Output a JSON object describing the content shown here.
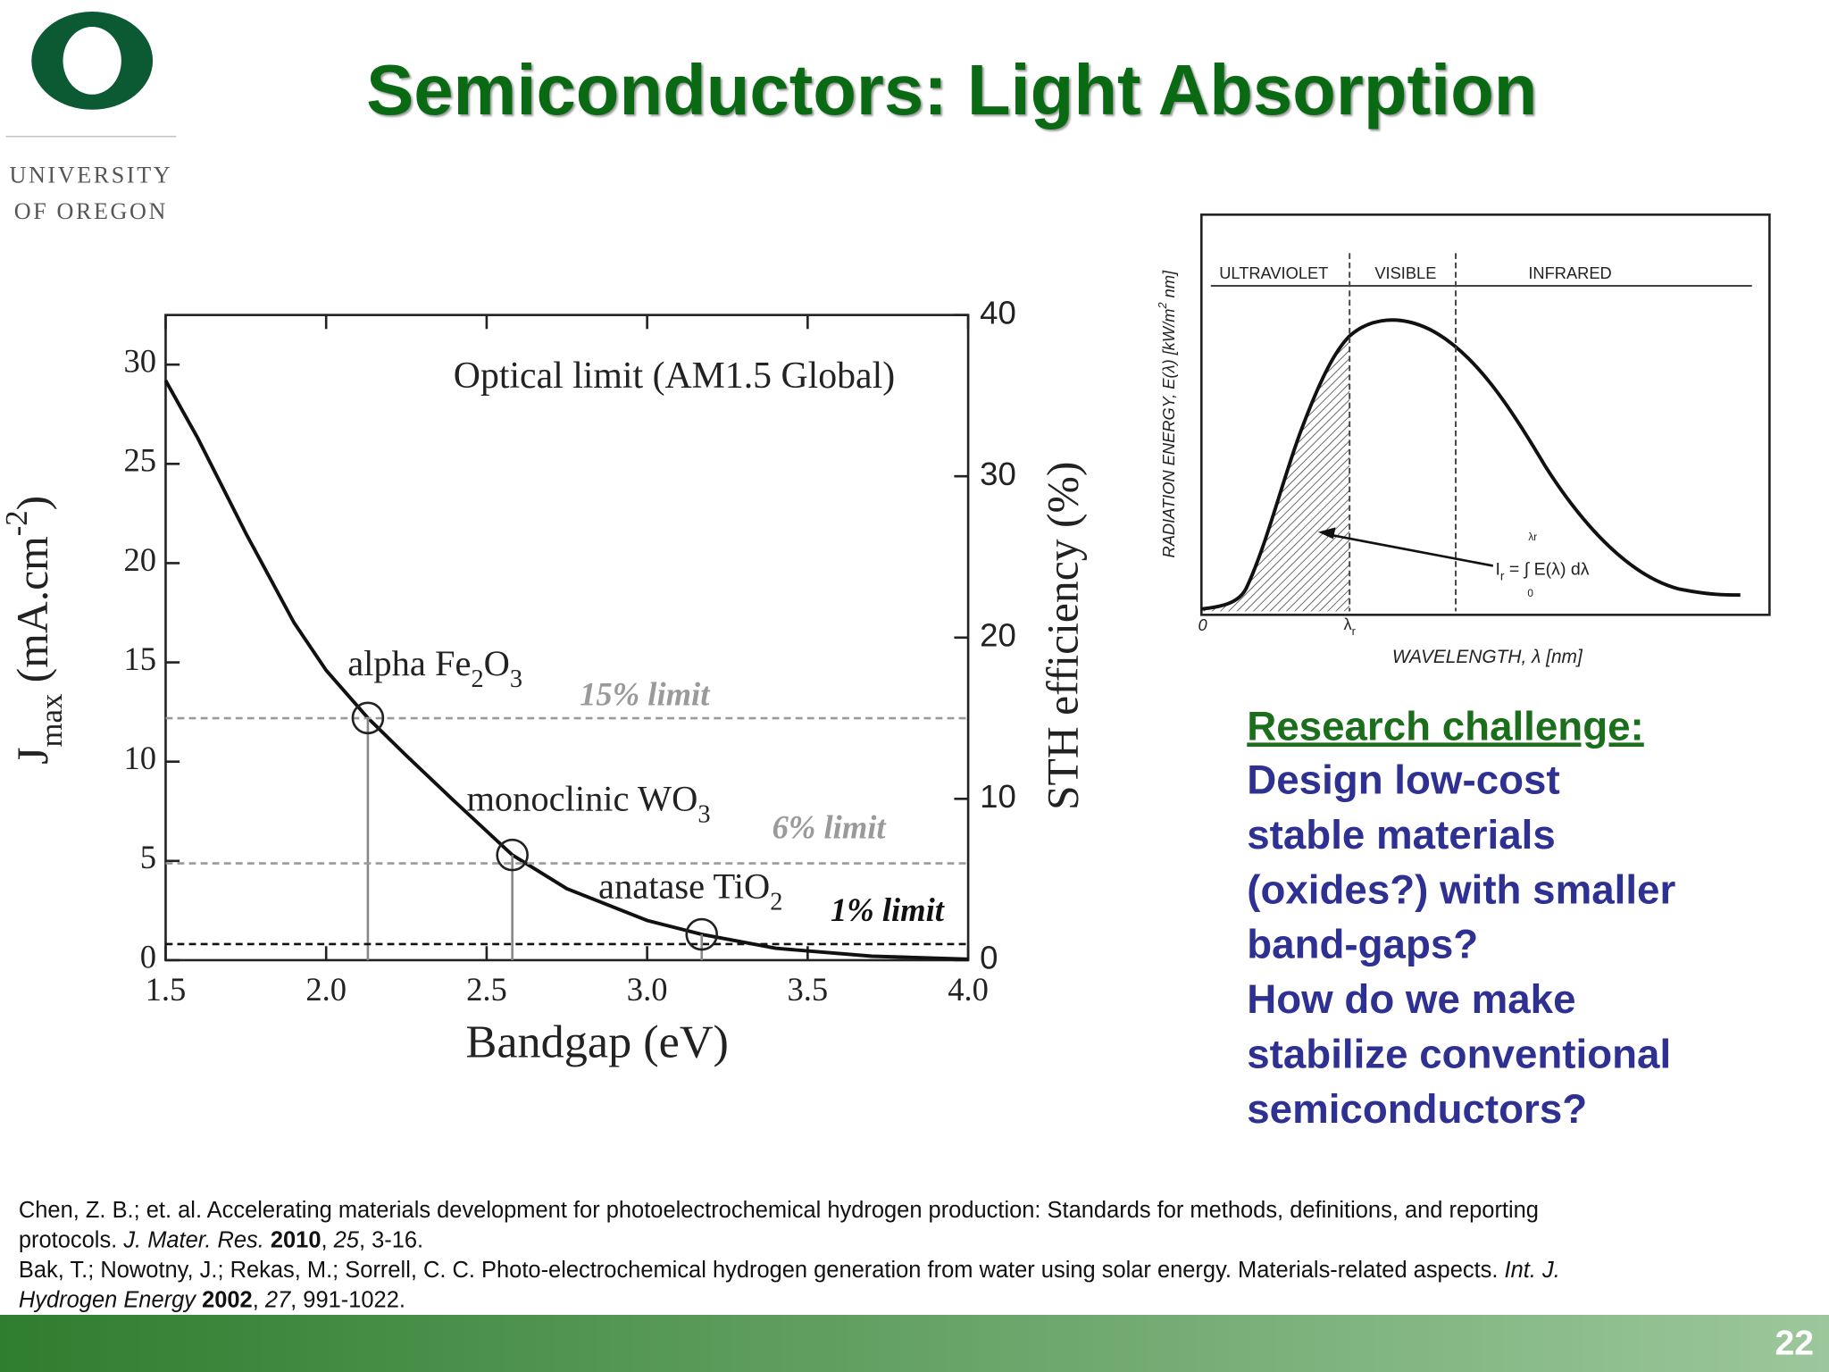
{
  "title": "Semiconductors: Light Absorption",
  "logo": {
    "line1": "UNIVERSITY",
    "line2": "OF OREGON"
  },
  "chart_data": {
    "type": "line",
    "title": "Optical limit (AM1.5 Global)",
    "x_label": "Bandgap (eV)",
    "y_label": [
      {
        "text": "J"
      },
      {
        "text": "max",
        "style": "sub"
      },
      {
        "text": " (mA.cm"
      },
      {
        "text": "-2",
        "style": "sup"
      },
      {
        "text": ")"
      }
    ],
    "y2_label": "STH efficiency (%)",
    "x": [
      1.5,
      1.6,
      1.75,
      1.9,
      2.0,
      2.13,
      2.25,
      2.4,
      2.58,
      2.75,
      3.0,
      3.17,
      3.4,
      3.7,
      4.0
    ],
    "series": [
      {
        "color": "#111111",
        "values": [
          29.2,
          26.3,
          21.5,
          17.0,
          14.6,
          12.2,
          10.3,
          8.0,
          5.3,
          3.6,
          2.0,
          1.3,
          0.6,
          0.2,
          0.05
        ]
      }
    ],
    "xlim": [
      1.5,
      4.0
    ],
    "xticks": [
      1.5,
      {
        "value": 2,
        "label": "2.0"
      },
      2.5,
      {
        "value": 3,
        "label": "3.0"
      },
      3.5,
      {
        "value": 4,
        "label": "4.0"
      }
    ],
    "ylim": [
      0,
      32.5
    ],
    "yticks": [
      0,
      5,
      10,
      15,
      20,
      25,
      30
    ],
    "y2lim": [
      0,
      40
    ],
    "y2ticks": [
      0,
      10,
      20,
      30,
      40
    ],
    "annotations": [
      {
        "label": [
          {
            "text": "alpha Fe"
          },
          {
            "text": "2",
            "style": "sub"
          },
          {
            "text": "O"
          },
          {
            "text": "3",
            "style": "sub"
          }
        ],
        "x": 2.13,
        "y": 12.2,
        "limit": 15,
        "limit_label": "15% limit",
        "limit_color": "#9a9a9a"
      },
      {
        "label": [
          {
            "text": "monoclinic WO"
          },
          {
            "text": "3",
            "style": "sub"
          }
        ],
        "x": 2.58,
        "y": 5.3,
        "limit": 6,
        "limit_label": "6% limit",
        "limit_color": "#9a9a9a"
      },
      {
        "label": [
          {
            "text": "anatase TiO"
          },
          {
            "text": "2",
            "style": "sub"
          }
        ],
        "x": 3.17,
        "y": 1.3,
        "limit": 1,
        "limit_label": "1% limit",
        "limit_color": "#111111"
      }
    ]
  },
  "spectrum_figure": {
    "regions": [
      "ULTRAVIOLET",
      "VISIBLE",
      "INFRARED"
    ],
    "y_label": [
      {
        "text": "RADIATION ENERGY, E(λ) [kW/m"
      },
      {
        "text": "2",
        "style": "sup"
      },
      {
        "text": " nm]"
      }
    ],
    "x_label": "WAVELENGTH, λ [nm]",
    "origin": "0",
    "cutoff": [
      {
        "text": "λ"
      },
      {
        "text": "r",
        "style": "sub"
      }
    ],
    "formula": [
      {
        "text": "I"
      },
      {
        "text": "r",
        "style": "sub"
      },
      {
        "text": " = ∫ E(λ) dλ"
      }
    ],
    "formula_upper": "λr",
    "formula_lower": "0"
  },
  "research": {
    "heading": "Research challenge:",
    "lines": [
      "Design low-cost",
      "stable materials",
      "(oxides?) with smaller",
      "band-gaps?",
      "How do we make",
      "stabilize conventional",
      "semiconductors?"
    ]
  },
  "references": [
    [
      {
        "text": "Chen, Z. B.; et. al. Accelerating materials development for photoelectrochemical hydrogen production: Standards for methods, definitions, and reporting"
      }
    ],
    [
      {
        "text": "protocols. "
      },
      {
        "text": "J. Mater. Res.",
        "style": "italic"
      },
      {
        "text": " "
      },
      {
        "text": "2010",
        "style": "bold"
      },
      {
        "text": ", "
      },
      {
        "text": "25",
        "style": "italic"
      },
      {
        "text": ", 3-16."
      }
    ],
    [
      {
        "text": "Bak, T.; Nowotny, J.; Rekas, M.; Sorrell, C. C. Photo-electrochemical hydrogen generation from water using solar energy. Materials-related aspects. "
      },
      {
        "text": "Int. J.",
        "style": "italic"
      }
    ],
    [
      {
        "text": "Hydrogen Energy",
        "style": "italic"
      },
      {
        "text": " "
      },
      {
        "text": "2002",
        "style": "bold"
      },
      {
        "text": ", "
      },
      {
        "text": "27",
        "style": "italic"
      },
      {
        "text": ", 991-1022."
      }
    ]
  ],
  "page_number": "22"
}
